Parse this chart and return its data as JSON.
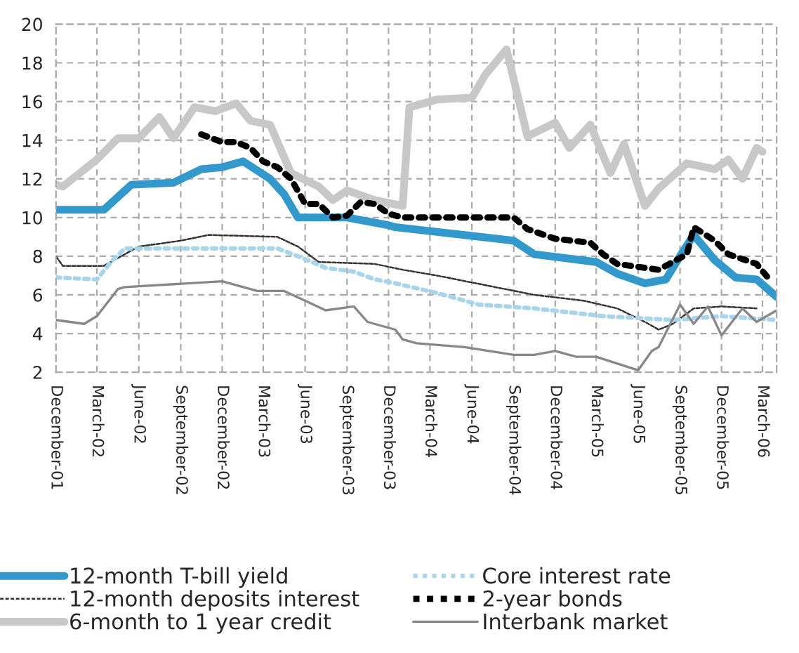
{
  "chart_data": {
    "type": "line",
    "xlim": [
      "2001-12",
      "2006-04"
    ],
    "ylim": [
      2,
      20
    ],
    "xticks": [
      {
        "value": "2001-12",
        "label": "December-01"
      },
      {
        "value": "2002-03",
        "label": "March-02"
      },
      {
        "value": "2002-06",
        "label": "June-02"
      },
      {
        "value": "2002-09",
        "label": "September-02"
      },
      {
        "value": "2002-12",
        "label": "December-02"
      },
      {
        "value": "2003-03",
        "label": "March-03"
      },
      {
        "value": "2003-06",
        "label": "June-03"
      },
      {
        "value": "2003-09",
        "label": "September-03"
      },
      {
        "value": "2003-12",
        "label": "December-03"
      },
      {
        "value": "2004-03",
        "label": "March-04"
      },
      {
        "value": "2004-06",
        "label": "June-04"
      },
      {
        "value": "2004-09",
        "label": "September-04"
      },
      {
        "value": "2004-12",
        "label": "December-04"
      },
      {
        "value": "2005-03",
        "label": "March-05"
      },
      {
        "value": "2005-06",
        "label": "June-05"
      },
      {
        "value": "2005-09",
        "label": "September-05"
      },
      {
        "value": "2005-12",
        "label": "December-05"
      },
      {
        "value": "2006-03",
        "label": "March-06"
      }
    ],
    "yticks": [
      2,
      4,
      6,
      8,
      10,
      12,
      14,
      16,
      18,
      20
    ],
    "grid": true,
    "legend": "bottom",
    "series": [
      {
        "name": "12-month T-bill yield",
        "color": "#3399cc",
        "line_style": "solid",
        "x": [
          "2001-12-01",
          "2002-03-16",
          "2002-05-16",
          "2002-08-16",
          "2002-10-16",
          "2002-12-01",
          "2003-01-16",
          "2003-03-16",
          "2003-04-16",
          "2003-05-16",
          "2003-09-01",
          "2003-12-01",
          "2003-12-16",
          "2004-09-01",
          "2004-10-16",
          "2005-03-01",
          "2005-04-16",
          "2005-06-16",
          "2005-08-01",
          "2005-09-01",
          "2005-10-01",
          "2005-11-16",
          "2006-01-01",
          "2006-02-16",
          "2006-04-01"
        ],
        "values": [
          10.4,
          10.4,
          11.7,
          11.8,
          12.5,
          12.6,
          12.9,
          12,
          11.2,
          10,
          10,
          9.6,
          9.5,
          8.8,
          8.1,
          7.7,
          7.1,
          6.6,
          6.8,
          8,
          9.1,
          7.8,
          6.9,
          6.8,
          5.9
        ]
      },
      {
        "name": "12-month deposits interest",
        "color": "#333333",
        "line_style": "dashed",
        "x": [
          "2001-12-01",
          "2001-12-16",
          "2002-03-16",
          "2002-05-01",
          "2002-06-01",
          "2002-09-01",
          "2002-11-01",
          "2003-04-01",
          "2003-05-16",
          "2003-07-01",
          "2003-11-01",
          "2004-01-01",
          "2004-03-16",
          "2004-07-01",
          "2004-10-16",
          "2005-02-01",
          "2005-04-16",
          "2005-06-16",
          "2005-07-16",
          "2005-08-16",
          "2005-10-01",
          "2005-12-01",
          "2006-02-16"
        ],
        "values": [
          8,
          7.5,
          7.5,
          8.1,
          8.5,
          8.8,
          9.1,
          9,
          8.5,
          7.7,
          7.6,
          7.3,
          7,
          6.5,
          6,
          5.7,
          5.3,
          4.6,
          4.2,
          4.5,
          5.3,
          5.4,
          5.3
        ]
      },
      {
        "name": "6-month to 1 year credit",
        "color": "#c8c8c8",
        "line_style": "solid",
        "x": [
          "2001-12-01",
          "2001-12-16",
          "2002-03-01",
          "2002-04-16",
          "2002-06-01",
          "2002-07-16",
          "2002-08-16",
          "2002-10-01",
          "2002-11-16",
          "2003-01-01",
          "2003-02-01",
          "2003-03-16",
          "2003-05-01",
          "2003-07-01",
          "2003-08-01",
          "2003-09-01",
          "2003-11-01",
          "2004-01-01",
          "2004-01-16",
          "2004-03-16",
          "2004-06-01",
          "2004-07-01",
          "2004-08-16",
          "2004-10-01",
          "2004-12-01",
          "2005-01-01",
          "2005-02-16",
          "2005-04-01",
          "2005-05-01",
          "2005-06-16",
          "2005-07-16",
          "2005-09-16",
          "2005-11-16",
          "2005-12-16",
          "2006-01-16",
          "2006-02-16",
          "2006-03-01"
        ],
        "values": [
          11.7,
          11.6,
          13,
          14.1,
          14.1,
          15.2,
          14.1,
          15.7,
          15.5,
          15.9,
          15,
          14.8,
          12.3,
          11.6,
          10.9,
          11.4,
          10.9,
          10.6,
          15.7,
          16.1,
          16.2,
          17.4,
          18.7,
          14.2,
          14.9,
          13.6,
          14.8,
          12.3,
          13.8,
          10.6,
          11.5,
          12.8,
          12.5,
          13,
          12,
          13.6,
          13.4
        ]
      },
      {
        "name": "Core interest rate",
        "color": "#a8d4ec",
        "line_style": "dotted",
        "x": [
          "2001-12-01",
          "2002-03-01",
          "2002-04-01",
          "2002-05-01",
          "2003-04-01",
          "2003-05-16",
          "2003-07-16",
          "2003-09-16",
          "2003-11-01",
          "2003-12-16",
          "2004-03-16",
          "2004-06-16",
          "2004-10-16",
          "2005-03-16",
          "2005-08-16",
          "2005-12-01",
          "2006-04-01"
        ],
        "values": [
          6.9,
          6.8,
          7.7,
          8.4,
          8.4,
          8,
          7.4,
          7.2,
          6.8,
          6.6,
          6.1,
          5.5,
          5.3,
          4.9,
          4.7,
          4.9,
          4.7
        ]
      },
      {
        "name": "2-year bonds",
        "color": "#000000",
        "line_style": "dotted",
        "x": [
          "2002-10-16",
          "2002-12-01",
          "2003-01-01",
          "2003-02-01",
          "2003-03-01",
          "2003-04-01",
          "2003-05-01",
          "2003-06-01",
          "2003-07-01",
          "2003-08-01",
          "2003-09-01",
          "2003-10-01",
          "2003-11-01",
          "2003-12-01",
          "2004-01-01",
          "2004-09-01",
          "2004-10-01",
          "2004-12-01",
          "2005-02-16",
          "2005-03-16",
          "2005-04-16",
          "2005-07-16",
          "2005-08-16",
          "2005-09-16",
          "2005-10-01",
          "2005-11-16",
          "2005-12-16",
          "2006-02-16",
          "2006-03-16"
        ],
        "values": [
          14.3,
          13.9,
          13.9,
          13.6,
          12.9,
          12.6,
          12,
          10.7,
          10.7,
          10,
          10.1,
          10.8,
          10.7,
          10.2,
          10,
          10,
          9.4,
          8.9,
          8.7,
          8.1,
          7.6,
          7.3,
          7.7,
          8.1,
          9.5,
          8.8,
          8.1,
          7.6,
          6.8
        ]
      },
      {
        "name": "Interbank market",
        "color": "#888888",
        "line_style": "solid",
        "x": [
          "2001-12-01",
          "2002-02-01",
          "2002-03-01",
          "2002-04-16",
          "2002-05-01",
          "2002-12-01",
          "2003-02-16",
          "2003-04-16",
          "2003-06-01",
          "2003-07-16",
          "2003-09-16",
          "2003-10-16",
          "2003-12-16",
          "2004-01-01",
          "2004-02-01",
          "2004-05-16",
          "2004-09-01",
          "2004-10-16",
          "2004-12-01",
          "2005-01-16",
          "2005-03-01",
          "2005-06-01",
          "2005-07-01",
          "2005-07-16",
          "2005-09-01",
          "2005-10-01",
          "2005-11-01",
          "2005-12-01",
          "2006-01-16",
          "2006-02-16",
          "2006-04-01"
        ],
        "values": [
          4.7,
          4.5,
          4.9,
          6.3,
          6.4,
          6.7,
          6.2,
          6.2,
          5.7,
          5.2,
          5.4,
          4.6,
          4.2,
          3.7,
          3.5,
          3.3,
          2.9,
          2.9,
          3.1,
          2.8,
          2.8,
          2.1,
          3.1,
          3.3,
          5.5,
          4.5,
          5.4,
          3.9,
          5.3,
          4.6,
          5.2
        ]
      }
    ]
  }
}
